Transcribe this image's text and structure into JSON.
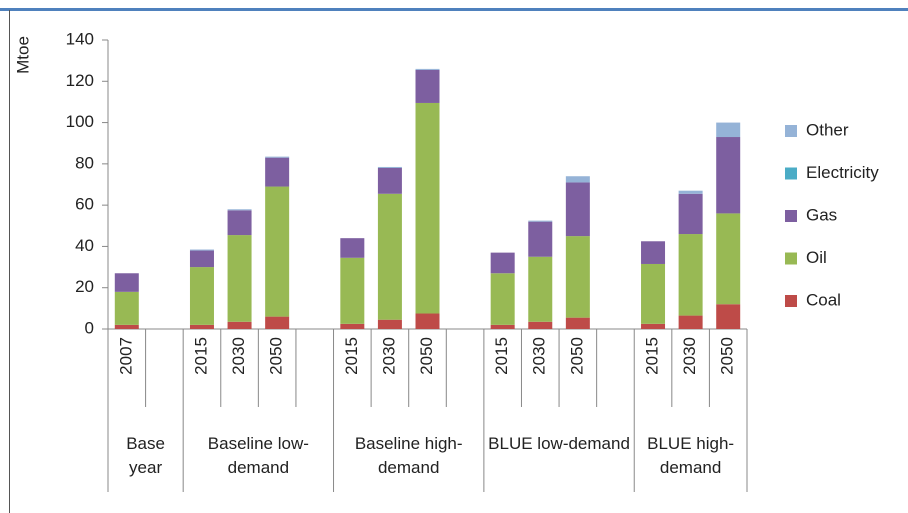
{
  "chart_data": {
    "type": "bar",
    "stacked": true,
    "y_label": "Mtoe",
    "categories": [
      "2007",
      null,
      "2015",
      "2030",
      "2050",
      null,
      "2015",
      "2030",
      "2050",
      null,
      "2015",
      "2030",
      "2050",
      null,
      "2015",
      "2030",
      "2050"
    ],
    "groups": [
      {
        "label": "Base year",
        "span": 2
      },
      {
        "label": "Baseline low-demand",
        "span": 4
      },
      {
        "label": "Baseline high-demand",
        "span": 4
      },
      {
        "label": "BLUE low-demand",
        "span": 4
      },
      {
        "label": "BLUE high-demand",
        "span": 3
      }
    ],
    "series": [
      {
        "name": "Coal",
        "color": "#be4b48",
        "values": [
          2,
          null,
          2,
          3.5,
          6,
          null,
          2.5,
          4.5,
          7.5,
          null,
          2,
          3.5,
          5.5,
          null,
          2.5,
          6.5,
          12
        ]
      },
      {
        "name": "Oil",
        "color": "#98b954",
        "values": [
          16,
          null,
          28,
          42,
          63,
          null,
          32,
          61,
          102,
          null,
          25,
          31.5,
          39.5,
          null,
          29,
          39.5,
          44
        ]
      },
      {
        "name": "Gas",
        "color": "#7d5fa0",
        "values": [
          9,
          null,
          8,
          12,
          14,
          null,
          9.5,
          12.5,
          16,
          null,
          10,
          17,
          26,
          null,
          11,
          19.5,
          37
        ]
      },
      {
        "name": "Electricity",
        "color": "#4bacc6",
        "values": [
          0,
          null,
          0,
          0,
          0,
          null,
          0,
          0,
          0,
          null,
          0,
          0,
          0,
          null,
          0,
          0,
          0
        ]
      },
      {
        "name": "Other",
        "color": "#95b3d7",
        "values": [
          0,
          null,
          0.5,
          0.5,
          0.5,
          null,
          0,
          0.5,
          0.5,
          null,
          0,
          0.5,
          3,
          null,
          0,
          1.5,
          7
        ]
      }
    ],
    "ylim": [
      0,
      140
    ],
    "yticks": [
      0,
      20,
      40,
      60,
      80,
      100,
      120,
      140
    ],
    "legend": "right"
  }
}
